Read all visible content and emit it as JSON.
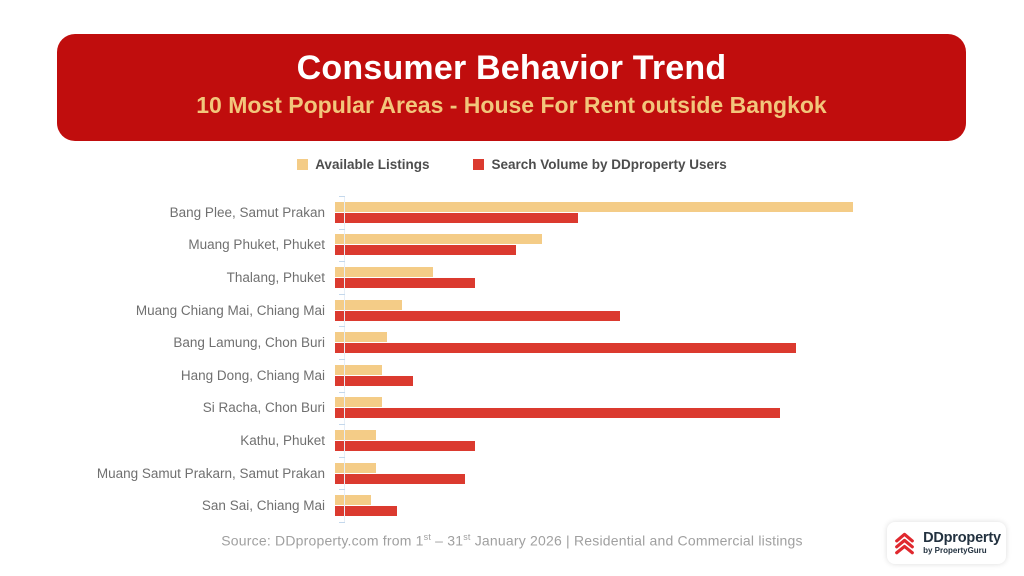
{
  "header": {
    "title": "Consumer Behavior Trend",
    "subtitle": "10 Most Popular Areas - House For Rent outside Bangkok",
    "background_color": "#C00D0D",
    "title_color": "#FFFFFF",
    "subtitle_color": "#F2C67B"
  },
  "legend": {
    "items": [
      {
        "label": "Available Listings",
        "color": "#F4CC87"
      },
      {
        "label": "Search Volume by DDproperty Users",
        "color": "#DB3A2F"
      }
    ]
  },
  "chart_data": {
    "type": "bar",
    "orientation": "horizontal",
    "title": "Consumer Behavior Trend",
    "subtitle": "10 Most Popular Areas - House For Rent outside Bangkok",
    "xlabel": "",
    "ylabel": "",
    "grid": false,
    "legend_position": "top",
    "value_note": "No numeric axis shown; values are relative bar lengths, longest bar = 100",
    "xlim": [
      0,
      120
    ],
    "categories": [
      "Bang Plee, Samut Prakan",
      "Muang Phuket, Phuket",
      "Thalang, Phuket",
      "Muang Chiang Mai, Chiang Mai",
      "Bang Lamung, Chon Buri",
      "Hang Dong, Chiang Mai",
      "Si Racha, Chon Buri",
      "Kathu, Phuket",
      "Muang Samut Prakarn, Samut Prakan",
      "San Sai, Chiang Mai"
    ],
    "series": [
      {
        "name": "Available Listings",
        "color": "#F4CC87",
        "values": [
          100,
          40,
          19,
          13,
          10,
          9,
          9,
          8,
          8,
          7
        ]
      },
      {
        "name": "Search Volume by DDproperty Users",
        "color": "#DB3A2F",
        "values": [
          47,
          35,
          27,
          55,
          89,
          15,
          86,
          27,
          25,
          12
        ]
      }
    ]
  },
  "source": {
    "p1": "Source: DDproperty.com from 1",
    "sup1": "st",
    "p2": " – 31",
    "sup2": "st",
    "p3": " January 2026 | Residential and Commercial listings"
  },
  "logo": {
    "brand": "DDproperty",
    "byline": "by PropertyGuru",
    "icon_color": "#E0282E",
    "text_color": "#22313F"
  }
}
